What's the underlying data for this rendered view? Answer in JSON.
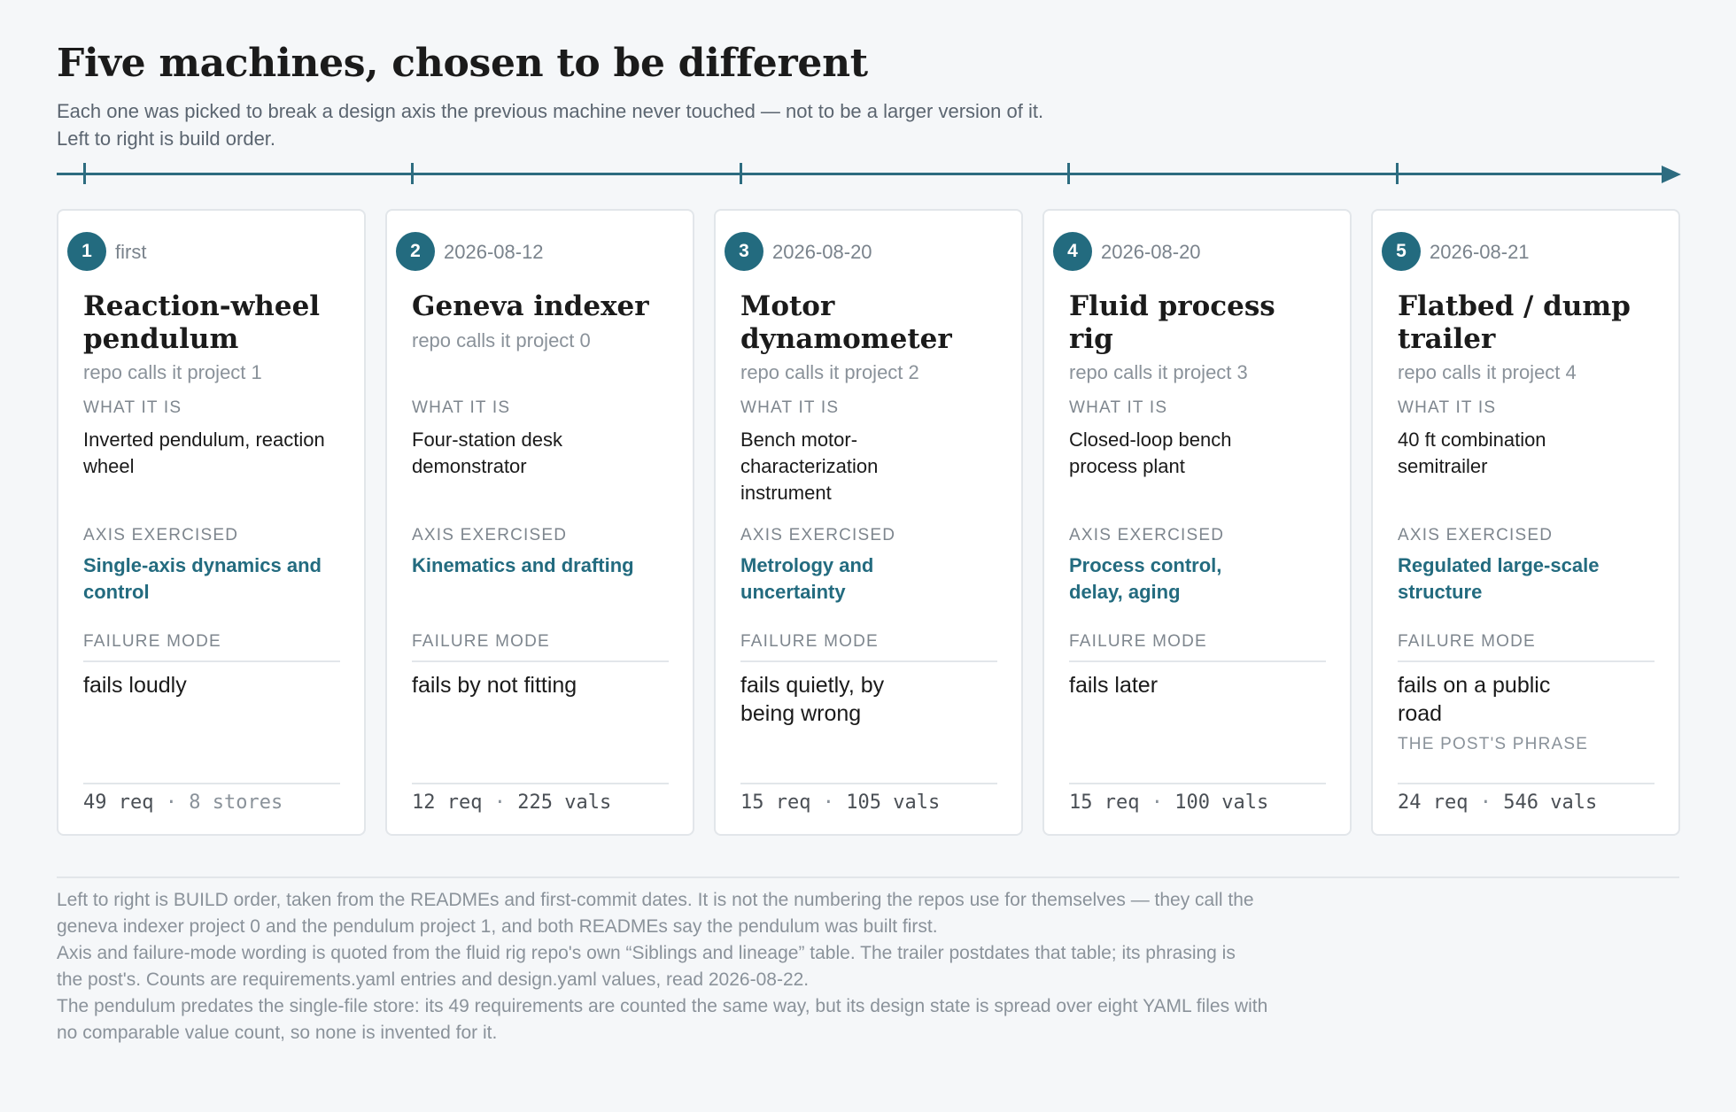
{
  "header": {
    "title": "Five machines, chosen to be different",
    "subtitle_lines": [
      "Each one was picked to break a design axis the previous machine never touched — not to be a larger version of it.",
      "Left to right is build order."
    ]
  },
  "labels": {
    "what": "WHAT IT IS",
    "axis": "AXIS EXERCISED",
    "failure": "FAILURE MODE"
  },
  "machines": [
    {
      "number": "1",
      "date": "first",
      "title": "Reaction-wheel pendulum",
      "repo": "repo calls it project 1",
      "what": "Inverted pendulum, reaction wheel",
      "axis": "Single-axis dynamics and control",
      "failure": "fails loudly",
      "phrase": "",
      "req": "49 req",
      "sep": " · ",
      "second": "8 stores"
    },
    {
      "number": "2",
      "date": "2026-08-12",
      "title": "Geneva indexer",
      "repo": "repo calls it project 0",
      "what": "Four-station desk demonstrator",
      "axis": "Kinematics and drafting",
      "failure": "fails by not fitting",
      "phrase": "",
      "req": "12 req",
      "sep": " · ",
      "second": "225 vals"
    },
    {
      "number": "3",
      "date": "2026-08-20",
      "title": "Motor dynamometer",
      "repo": "repo calls it project 2",
      "what": "Bench motor-characterization instrument",
      "axis": "Metrology and uncertainty",
      "failure": "fails quietly, by being wrong",
      "phrase": "",
      "req": "15 req",
      "sep": " · ",
      "second": "105 vals"
    },
    {
      "number": "4",
      "date": "2026-08-20",
      "title": "Fluid process rig",
      "repo": "repo calls it project 3",
      "what": "Closed-loop bench process plant",
      "axis": "Process control, delay, aging",
      "failure": "fails later",
      "phrase": "",
      "req": "15 req",
      "sep": " · ",
      "second": "100 vals"
    },
    {
      "number": "5",
      "date": "2026-08-21",
      "title": "Flatbed / dump trailer",
      "repo": "repo calls it project 4",
      "what": "40 ft combination semitrailer",
      "axis": "Regulated large-scale structure",
      "failure": "fails on a public road",
      "phrase": "THE POST'S PHRASE",
      "req": "24 req",
      "sep": " · ",
      "second": "546 vals"
    }
  ],
  "footnotes": [
    "Left to right is BUILD order, taken from the READMEs and first-commit dates. It is not the numbering the repos use for themselves — they call the",
    "geneva indexer project 0 and the pendulum project 1, and both READMEs say the pendulum was built first.",
    "Axis and failure-mode wording is quoted from the fluid rig repo's own “Siblings and lineage” table. The trailer postdates that table; its phrasing is",
    "the post's. Counts are requirements.yaml entries and design.yaml values, read 2026-08-22.",
    "The pendulum predates the single-file store: its 49 requirements are counted the same way, but its design state is spread over eight YAML files with",
    "no comparable value count, so none is invented for it."
  ],
  "colors": {
    "accent": "#236b7f",
    "background": "#f5f7f9",
    "card": "#ffffff"
  }
}
